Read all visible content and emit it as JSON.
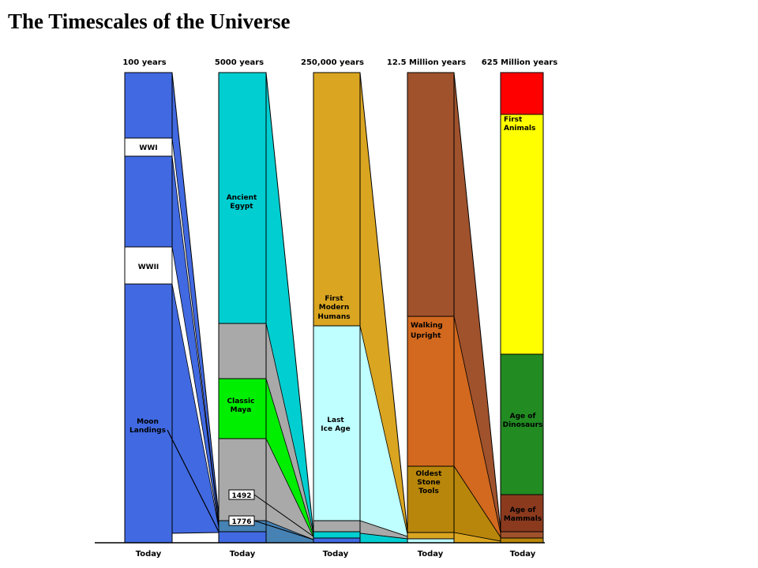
{
  "title": "The Timescales of the Universe",
  "columns": [
    {
      "span": "100 years",
      "color": "#4169E1",
      "bottom_label": "Today",
      "labels": [
        "WWI",
        "WWII",
        "Moon",
        "Landings"
      ]
    },
    {
      "span": "5000 years",
      "color": "#00CED1",
      "bottom_label": "Today",
      "labels": [
        "Ancient",
        "Egypt",
        "Classic",
        "Maya",
        "1492",
        "1776"
      ]
    },
    {
      "span": "250,000 years",
      "color": "#DAA520",
      "bottom_label": "Today",
      "labels": [
        "First",
        "Modern",
        "Humans",
        "Last",
        "Ice Age"
      ]
    },
    {
      "span": "12.5 Million years",
      "color": "#A0522D",
      "bottom_label": "Today",
      "labels": [
        "Walking",
        "Upright",
        "Oldest",
        "Stone",
        "Tools"
      ]
    },
    {
      "span": "625 Million years",
      "color": "#FF0000",
      "bottom_label": "Today",
      "labels": [
        "First",
        "Animals",
        "Age of",
        "Dinosaurs",
        "Age of",
        "Mammals"
      ]
    }
  ],
  "palette": {
    "blue": "#4169E1",
    "cyan": "#00CED1",
    "gray": "#A9A9A9",
    "green": "#00EE00",
    "steel": "#4682B4",
    "gold": "#DAA520",
    "pale_cyan": "#BFFFFF",
    "sienna": "#A0522D",
    "chocolate": "#D2691E",
    "dark_gold": "#B8860B",
    "red": "#FF0000",
    "yellow": "#FFFF00",
    "forest": "#228B22",
    "brown": "#8B3A1E"
  }
}
